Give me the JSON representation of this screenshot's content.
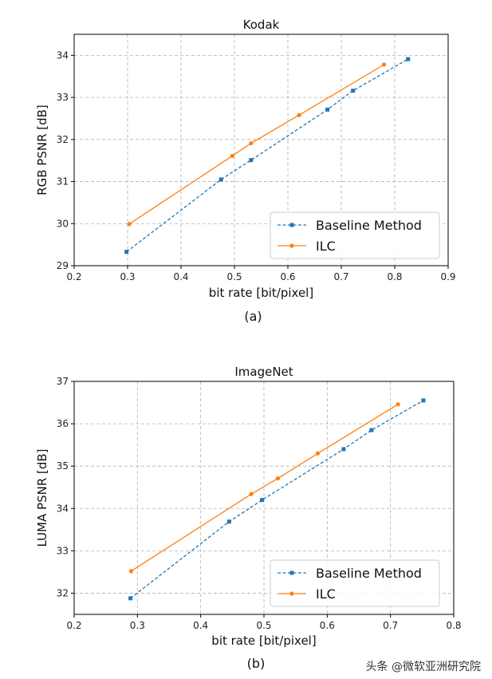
{
  "chart_data": [
    {
      "type": "line",
      "title": "Kodak",
      "xlabel": "bit rate [bit/pixel]",
      "ylabel": "RGB PSNR [dB]",
      "caption": "(a)",
      "xlim": [
        0.2,
        0.9
      ],
      "ylim": [
        29,
        34.5
      ],
      "xticks": [
        0.2,
        0.3,
        0.4,
        0.5,
        0.6,
        0.7,
        0.8,
        0.9
      ],
      "yticks": [
        29,
        30,
        31,
        32,
        33,
        34
      ],
      "xtick_labels": [
        "0.2",
        "0.3",
        "0.4",
        "0.5",
        "0.6",
        "0.7",
        "0.8",
        "0.9"
      ],
      "ytick_labels": [
        "29",
        "30",
        "31",
        "32",
        "33",
        "34"
      ],
      "grid": true,
      "legend_position": "lower-right",
      "series": [
        {
          "name": "Baseline Method",
          "color": "#1f77b4",
          "marker": "square",
          "style": "dashed",
          "x": [
            0.298,
            0.475,
            0.531,
            0.674,
            0.722,
            0.825
          ],
          "y": [
            29.33,
            31.05,
            31.51,
            32.71,
            33.16,
            33.91
          ]
        },
        {
          "name": "ILC",
          "color": "#ff7f0e",
          "marker": "circle",
          "style": "solid",
          "x": [
            0.303,
            0.496,
            0.531,
            0.621,
            0.78
          ],
          "y": [
            29.99,
            31.61,
            31.91,
            32.58,
            33.78
          ]
        }
      ]
    },
    {
      "type": "line",
      "title": "ImageNet",
      "xlabel": "bit rate [bit/pixel]",
      "ylabel": "LUMA PSNR [dB]",
      "caption": "(b)",
      "xlim": [
        0.2,
        0.8
      ],
      "ylim": [
        31.5,
        37
      ],
      "xticks": [
        0.2,
        0.3,
        0.4,
        0.5,
        0.6,
        0.7,
        0.8
      ],
      "yticks": [
        32,
        33,
        34,
        35,
        36,
        37
      ],
      "xtick_labels": [
        "0.2",
        "0.3",
        "0.4",
        "0.5",
        "0.6",
        "0.7",
        "0.8"
      ],
      "ytick_labels": [
        "32",
        "33",
        "34",
        "35",
        "36",
        "37"
      ],
      "grid": true,
      "legend_position": "lower-right",
      "series": [
        {
          "name": "Baseline Method",
          "color": "#1f77b4",
          "marker": "square",
          "style": "dashed",
          "x": [
            0.289,
            0.445,
            0.497,
            0.626,
            0.67,
            0.752
          ],
          "y": [
            31.88,
            33.69,
            34.2,
            35.4,
            35.85,
            36.55
          ]
        },
        {
          "name": "ILC",
          "color": "#ff7f0e",
          "marker": "circle",
          "style": "solid",
          "x": [
            0.29,
            0.48,
            0.522,
            0.585,
            0.712
          ],
          "y": [
            32.52,
            34.34,
            34.71,
            35.3,
            36.46
          ]
        }
      ]
    }
  ],
  "watermark": "头条 @微软亚洲研究院"
}
